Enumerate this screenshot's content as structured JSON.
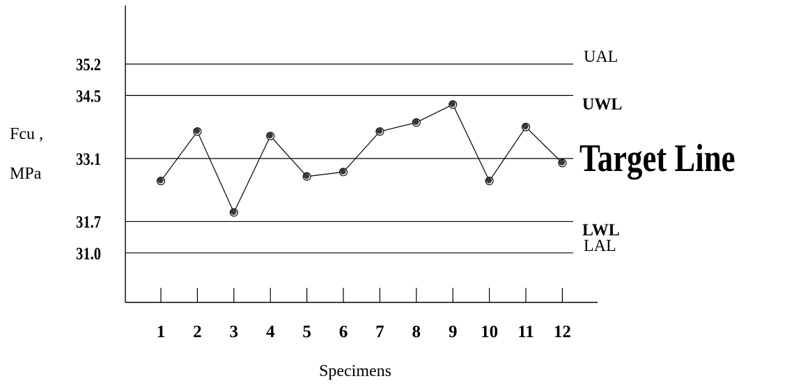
{
  "chart_data": {
    "type": "line",
    "xlabel": "Specimens",
    "ylabel": "Fcu , MPa",
    "ylabel_lines": [
      "Fcu ,",
      "MPa"
    ],
    "categories": [
      "1",
      "2",
      "3",
      "4",
      "5",
      "6",
      "7",
      "8",
      "9",
      "10",
      "11",
      "12"
    ],
    "series": [
      {
        "values": [
          32.6,
          33.7,
          31.9,
          33.6,
          32.7,
          32.8,
          33.7,
          33.9,
          34.3,
          32.6,
          33.8,
          33.0
        ]
      }
    ],
    "ylim": [
      29.9,
      36.5
    ],
    "y_ticks": [
      "35.2",
      "34.5",
      "33.1",
      "31.7",
      "31.0"
    ],
    "control_lines": [
      {
        "value": 35.2,
        "label": "UAL",
        "bold": false
      },
      {
        "value": 34.5,
        "label": "UWL",
        "bold": true
      },
      {
        "value": 33.1,
        "label": "Target Line",
        "bold": true
      },
      {
        "value": 31.7,
        "label": "LWL",
        "bold": true
      },
      {
        "value": 31.0,
        "label": "LAL",
        "bold": false
      }
    ],
    "grid": false,
    "legend": "none",
    "colors": {
      "line": "#000000",
      "marker": "#3a3a3a"
    }
  }
}
